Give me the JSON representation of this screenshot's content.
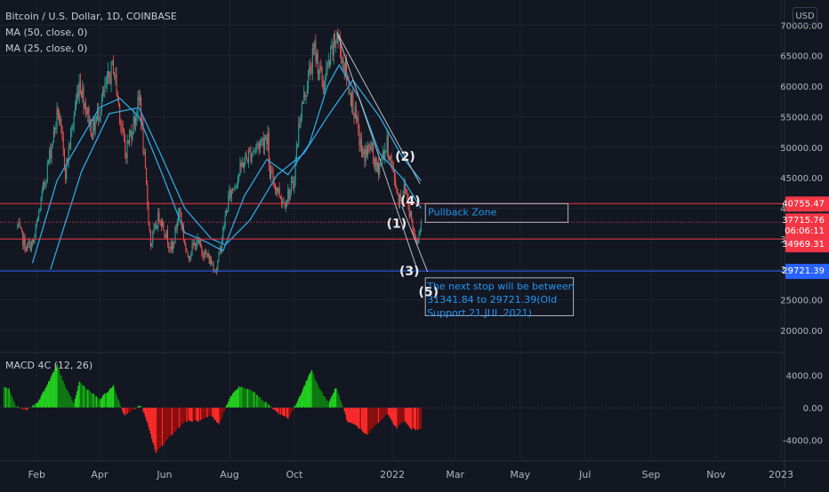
{
  "header": {
    "title": "Bitcoin / U.S. Dollar, 1D, COINBASE",
    "ma50": "MA (50, close, 0)",
    "ma25": "MA (25, close, 0)",
    "currency_button": "USD"
  },
  "macd": {
    "label": "MACD 4C (12, 26)",
    "ticks": [
      "4000.00",
      "0.00",
      "-4000.00"
    ]
  },
  "colors": {
    "background": "#131722",
    "candle_up": "#26a69a",
    "candle_down": "#ef5350",
    "ma": "#2ea8e0",
    "level_red": "#f23645",
    "level_blue": "#2962ff",
    "macd_green": "#22d11f",
    "macd_dark_green": "#0f7b12",
    "macd_red": "#ff2b2b",
    "macd_dark_red": "#8f0e0e",
    "annotation": "#2196f3"
  },
  "chart_data": {
    "type": "candlestick",
    "title": "Bitcoin / U.S. Dollar, 1D, COINBASE",
    "x_ticks": [
      "Feb",
      "Apr",
      "Jun",
      "Aug",
      "Oct",
      "2022",
      "Mar",
      "May",
      "Jul",
      "Sep",
      "Nov",
      "2023"
    ],
    "y_ticks": [
      "70000.00",
      "65000.00",
      "60000.00",
      "55000.00",
      "50000.00",
      "45000.00",
      "40000.00",
      "35000.00",
      "30000.00",
      "25000.00",
      "20000.00"
    ],
    "ylim": [
      16500,
      71500
    ],
    "price_path": [
      [
        "2021-01-14",
        37000
      ],
      [
        "2021-01-22",
        33500
      ],
      [
        "2021-01-29",
        34300
      ],
      [
        "2021-02-08",
        44000
      ],
      [
        "2021-02-21",
        56000
      ],
      [
        "2021-02-28",
        46000
      ],
      [
        "2021-03-13",
        61000
      ],
      [
        "2021-03-25",
        52500
      ],
      [
        "2021-04-14",
        63500
      ],
      [
        "2021-04-25",
        49000
      ],
      [
        "2021-05-09",
        58000
      ],
      [
        "2021-05-12",
        50000
      ],
      [
        "2021-05-19",
        34000
      ],
      [
        "2021-05-27",
        39000
      ],
      [
        "2021-06-08",
        33000
      ],
      [
        "2021-06-15",
        40000
      ],
      [
        "2021-06-22",
        32000
      ],
      [
        "2021-07-01",
        34500
      ],
      [
        "2021-07-20",
        29900
      ],
      [
        "2021-07-31",
        41500
      ],
      [
        "2021-08-14",
        47500
      ],
      [
        "2021-08-23",
        49500
      ],
      [
        "2021-09-06",
        52000
      ],
      [
        "2021-09-07",
        46000
      ],
      [
        "2021-09-21",
        41000
      ],
      [
        "2021-09-30",
        43800
      ],
      [
        "2021-10-06",
        55000
      ],
      [
        "2021-10-20",
        66000
      ],
      [
        "2021-10-28",
        60000
      ],
      [
        "2021-11-10",
        68500
      ],
      [
        "2021-11-25",
        57000
      ],
      [
        "2021-12-04",
        48500
      ],
      [
        "2021-12-12",
        50000
      ],
      [
        "2021-12-17",
        46000
      ],
      [
        "2021-12-27",
        50500
      ],
      [
        "2022-01-07",
        41500
      ],
      [
        "2022-01-13",
        43500
      ],
      [
        "2022-01-21",
        36000
      ],
      [
        "2022-01-24",
        34969
      ],
      [
        "2022-01-28",
        37716
      ]
    ],
    "ma50": [
      [
        "2021-02-14",
        30000
      ],
      [
        "2021-03-15",
        46000
      ],
      [
        "2021-04-10",
        55500
      ],
      [
        "2021-05-08",
        56500
      ],
      [
        "2021-05-28",
        49000
      ],
      [
        "2021-06-20",
        40000
      ],
      [
        "2021-07-15",
        35000
      ],
      [
        "2021-07-28",
        34000
      ],
      [
        "2021-08-20",
        38000
      ],
      [
        "2021-09-15",
        45500
      ],
      [
        "2021-10-10",
        49000
      ],
      [
        "2021-11-01",
        55000
      ],
      [
        "2021-11-25",
        61000
      ],
      [
        "2021-12-20",
        55000
      ],
      [
        "2022-01-10",
        48500
      ],
      [
        "2022-01-28",
        44500
      ]
    ],
    "ma25": [
      [
        "2021-01-28",
        31000
      ],
      [
        "2021-02-20",
        44500
      ],
      [
        "2021-03-10",
        50000
      ],
      [
        "2021-04-01",
        56500
      ],
      [
        "2021-04-20",
        58000
      ],
      [
        "2021-05-08",
        55000
      ],
      [
        "2021-05-30",
        45500
      ],
      [
        "2021-06-20",
        36000
      ],
      [
        "2021-07-10",
        34500
      ],
      [
        "2021-07-26",
        33000
      ],
      [
        "2021-08-15",
        42000
      ],
      [
        "2021-09-05",
        48000
      ],
      [
        "2021-09-25",
        45500
      ],
      [
        "2021-10-15",
        50500
      ],
      [
        "2021-11-01",
        60000
      ],
      [
        "2021-11-12",
        63500
      ],
      [
        "2021-12-01",
        58000
      ],
      [
        "2021-12-20",
        49000
      ],
      [
        "2022-01-10",
        45000
      ],
      [
        "2022-01-28",
        40000
      ]
    ],
    "levels": [
      {
        "price": 40755.47,
        "label": "40755.47",
        "style": "solid",
        "color": "#f23645"
      },
      {
        "price": 37715.76,
        "label": "37715.76",
        "style": "dotted",
        "color": "#f23645"
      },
      {
        "price": 34969.31,
        "label": "34969.31",
        "style": "solid",
        "color": "#f23645"
      },
      {
        "price": 29721.39,
        "label": "29721.39",
        "style": "solid",
        "color": "#2962ff"
      }
    ],
    "countdown_label": "06:06:11",
    "trendlines": [
      {
        "from": [
          "2021-11-10",
          68800
        ],
        "to": [
          "2022-01-25",
          29600
        ]
      },
      {
        "from": [
          "2021-11-10",
          68800
        ],
        "to": [
          "2022-01-27",
          44000
        ]
      },
      {
        "from": [
          "2022-01-10",
          40300
        ],
        "to": [
          "2022-02-03",
          29600
        ]
      }
    ],
    "wave_labels": [
      {
        "text": "(2)",
        "date": "2022-01-13",
        "price": 47800
      },
      {
        "text": "(4)",
        "date": "2022-01-18",
        "price": 40500
      },
      {
        "text": "(1)",
        "date": "2022-01-05",
        "price": 36800
      },
      {
        "text": "(3)",
        "date": "2022-01-17",
        "price": 29000
      },
      {
        "text": "(5)",
        "date": "2022-02-04",
        "price": 25600
      }
    ],
    "annotations": [
      {
        "text": "Pullback Zone",
        "box": [
          [
            "2022-02-01",
            40755
          ],
          [
            "2022-06-15",
            37700
          ]
        ]
      },
      {
        "lines": [
          "The next stop will be between",
          "31341.84 to 29721.39(Old",
          "Support 21 JUL 2021)"
        ],
        "box": [
          [
            "2022-02-01",
            28600
          ],
          [
            "2022-06-20",
            22400
          ]
        ]
      }
    ],
    "macd_ylim": [
      -6500,
      6500
    ],
    "macd_histogram": [
      [
        "2021-01-01",
        2600
      ],
      [
        "2021-01-06",
        2300
      ],
      [
        "2021-01-12",
        200
      ],
      [
        "2021-01-22",
        -300
      ],
      [
        "2021-02-01",
        500
      ],
      [
        "2021-02-10",
        2600
      ],
      [
        "2021-02-20",
        5300
      ],
      [
        "2021-03-01",
        2200
      ],
      [
        "2021-03-08",
        500
      ],
      [
        "2021-03-13",
        3200
      ],
      [
        "2021-03-20",
        2300
      ],
      [
        "2021-04-01",
        1000
      ],
      [
        "2021-04-14",
        2700
      ],
      [
        "2021-04-24",
        -900
      ],
      [
        "2021-05-10",
        300
      ],
      [
        "2021-05-16",
        -2000
      ],
      [
        "2021-05-24",
        -5600
      ],
      [
        "2021-06-05",
        -3700
      ],
      [
        "2021-06-20",
        -1700
      ],
      [
        "2021-07-05",
        -1600
      ],
      [
        "2021-07-15",
        -1000
      ],
      [
        "2021-07-22",
        -2100
      ],
      [
        "2021-07-27",
        -500
      ],
      [
        "2021-08-01",
        1200
      ],
      [
        "2021-08-10",
        2600
      ],
      [
        "2021-08-22",
        2100
      ],
      [
        "2021-09-01",
        1000
      ],
      [
        "2021-09-06",
        400
      ],
      [
        "2021-09-15",
        -600
      ],
      [
        "2021-09-25",
        -1300
      ],
      [
        "2021-10-02",
        300
      ],
      [
        "2021-10-08",
        2000
      ],
      [
        "2021-10-17",
        4700
      ],
      [
        "2021-10-24",
        2500
      ],
      [
        "2021-11-02",
        600
      ],
      [
        "2021-11-09",
        2500
      ],
      [
        "2021-11-15",
        300
      ],
      [
        "2021-11-20",
        -1800
      ],
      [
        "2021-11-28",
        -2200
      ],
      [
        "2021-12-08",
        -3400
      ],
      [
        "2021-12-15",
        -2300
      ],
      [
        "2021-12-27",
        -800
      ],
      [
        "2022-01-05",
        -2500
      ],
      [
        "2022-01-12",
        -1600
      ],
      [
        "2022-01-18",
        -2600
      ],
      [
        "2022-01-24",
        -2700
      ],
      [
        "2022-01-28",
        -2500
      ]
    ]
  }
}
